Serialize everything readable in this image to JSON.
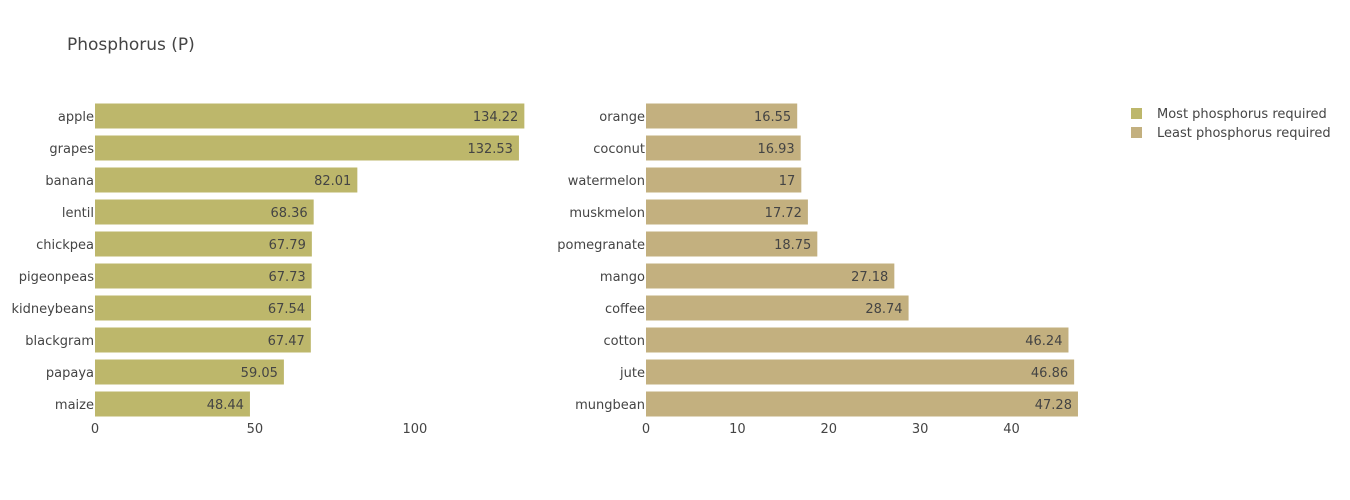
{
  "title": "Phosphorus (P)",
  "legend": [
    {
      "label": "Most phosphorus required",
      "color": "#bdb76b"
    },
    {
      "label": "Least phosphorus required",
      "color": "#c3b07f"
    }
  ],
  "chart_data": [
    {
      "type": "bar",
      "orientation": "horizontal",
      "series_name": "Most phosphorus required",
      "categories": [
        "apple",
        "grapes",
        "banana",
        "lentil",
        "chickpea",
        "pigeonpeas",
        "kidneybeans",
        "blackgram",
        "papaya",
        "maize"
      ],
      "values": [
        134.22,
        132.53,
        82.01,
        68.36,
        67.79,
        67.73,
        67.54,
        67.47,
        59.05,
        48.44
      ],
      "value_labels": [
        "134.22",
        "132.53",
        "82.01",
        "68.36",
        "67.79",
        "67.73",
        "67.54",
        "67.47",
        "59.05",
        "48.44"
      ],
      "xticks": [
        "0",
        "50",
        "100"
      ],
      "xlim": [
        0,
        141.3
      ],
      "color": "#bdb76b",
      "grid": false
    },
    {
      "type": "bar",
      "orientation": "horizontal",
      "series_name": "Least phosphorus required",
      "categories": [
        "orange",
        "coconut",
        "watermelon",
        "muskmelon",
        "pomegranate",
        "mango",
        "coffee",
        "cotton",
        "jute",
        "mungbean"
      ],
      "values": [
        16.55,
        16.93,
        17,
        17.72,
        18.75,
        27.18,
        28.74,
        46.24,
        46.86,
        47.28
      ],
      "value_labels": [
        "16.55",
        "16.93",
        "17",
        "17.72",
        "18.75",
        "27.18",
        "28.74",
        "46.24",
        "46.86",
        "47.28"
      ],
      "xticks": [
        "0",
        "10",
        "20",
        "30",
        "40"
      ],
      "xlim": [
        0,
        49.8
      ],
      "color": "#c3b07f",
      "grid": false
    }
  ]
}
